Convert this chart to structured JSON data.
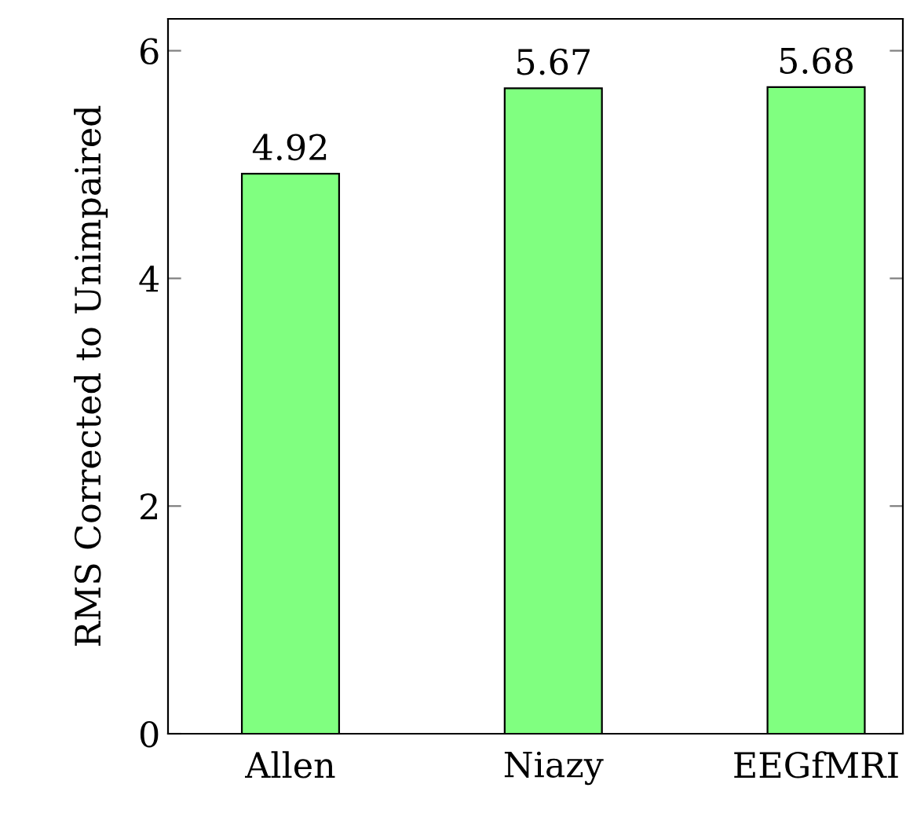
{
  "chart_data": {
    "type": "bar",
    "ylabel": "RMS Corrected to Unimpaired",
    "categories": [
      "Allen",
      "Niazy",
      "EEGfMRI"
    ],
    "values": [
      4.92,
      5.67,
      5.68
    ],
    "color": "#80ff80",
    "ylim": [
      0,
      6.28
    ],
    "yticks": [
      0,
      2,
      4,
      6
    ],
    "grid": false,
    "data_labels": true
  }
}
